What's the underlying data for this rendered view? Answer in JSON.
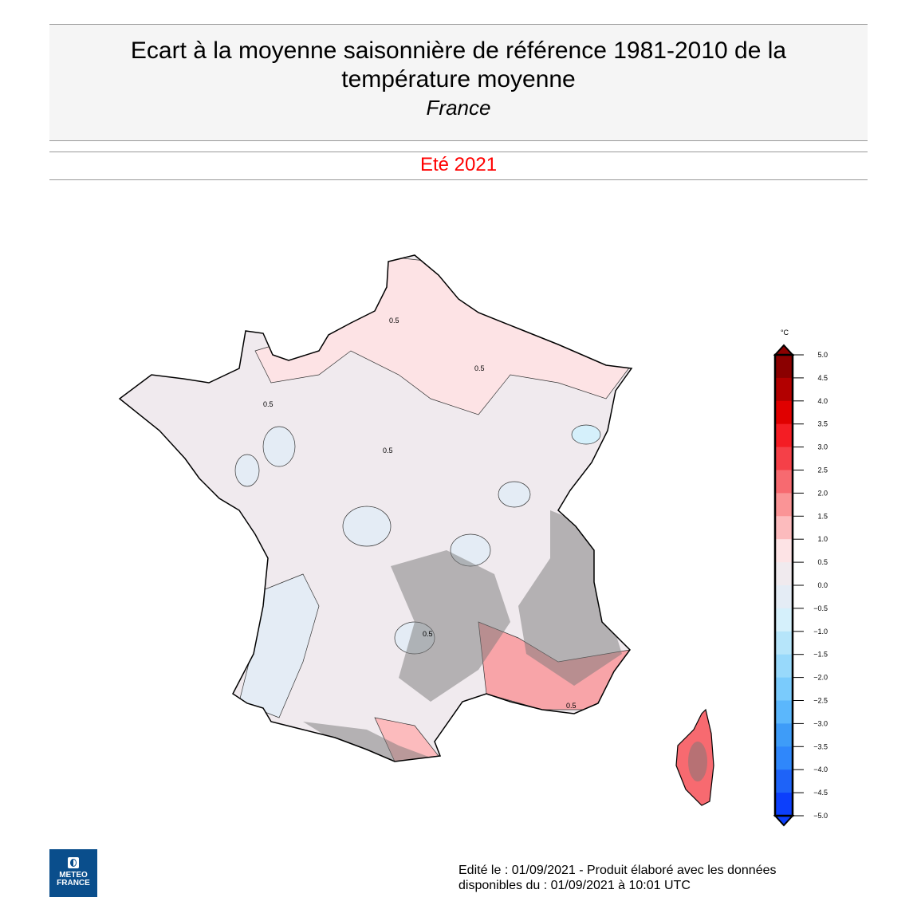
{
  "header": {
    "title": "Ecart à la moyenne saisonnière de référence 1981-2010 de la température moyenne",
    "subtitle": "France"
  },
  "period": "Eté 2021",
  "map": {
    "region": "France",
    "contour_label": "0.5"
  },
  "colorbar": {
    "unit": "°C",
    "ticks": [
      "5.0",
      "4.5",
      "4.0",
      "3.5",
      "3.0",
      "2.5",
      "2.0",
      "1.5",
      "1.0",
      "0.5",
      "0.0",
      "−0.5",
      "−1.0",
      "−1.5",
      "−2.0",
      "−2.5",
      "−3.0",
      "−3.5",
      "−4.0",
      "−4.5",
      "−5.0"
    ],
    "colors": [
      "#8b0000",
      "#b20000",
      "#e00000",
      "#f41d24",
      "#f54048",
      "#f76a70",
      "#fa9496",
      "#fcbbbd",
      "#fde3e5",
      "#f0eaee",
      "#e4ecf5",
      "#d5f0fb",
      "#b6e5fa",
      "#98d9fb",
      "#7acbfc",
      "#5bb7fc",
      "#3e9cf8",
      "#2f87fb",
      "#1e63f8",
      "#0c3ffc"
    ]
  },
  "logo": {
    "line1": "METEO",
    "line2": "FRANCE"
  },
  "footer": {
    "line1": "Edité le : 01/09/2021 - Produit élaboré avec les données",
    "line2": "disponibles du : 01/09/2021 à 10:01 UTC"
  }
}
